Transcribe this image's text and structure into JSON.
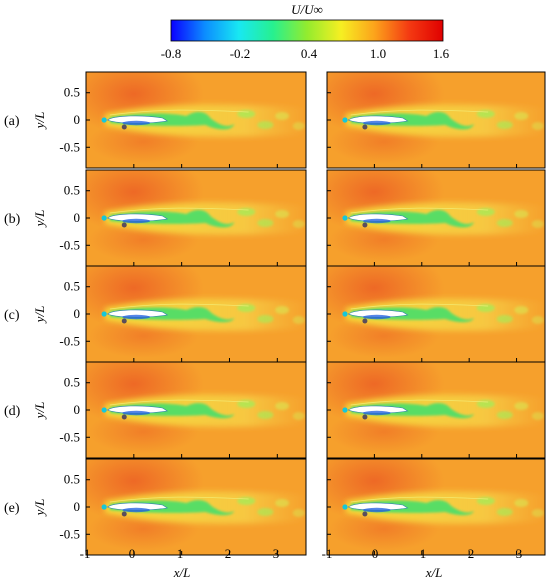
{
  "colorbar": {
    "title": "U/U∞",
    "tick_labels": [
      "-0.8",
      "-0.2",
      "0.4",
      "1.0",
      "1.6"
    ],
    "stops": [
      "#0a00ff",
      "#0c8dff",
      "#18e8f2",
      "#27f08f",
      "#93ec2e",
      "#f6ef22",
      "#fca21b",
      "#f43a12",
      "#e00000"
    ]
  },
  "rows": [
    {
      "label": "(a)"
    },
    {
      "label": "(b)"
    },
    {
      "label": "(c)"
    },
    {
      "label": "(d)"
    },
    {
      "label": "(e)"
    }
  ],
  "y_axis": {
    "label": "y/L",
    "tick_labels": [
      "0.5",
      "0",
      "-0.5"
    ]
  },
  "x_axis": {
    "label": "x/L",
    "tick_labels": [
      "-1",
      "0",
      "1",
      "2",
      "3"
    ]
  },
  "colors": {
    "freestream": "#f6a02c",
    "high_speed": "#ee6a24",
    "wake_band": "#f5df3a",
    "wake_core": "#47df6b",
    "wake_core_light": "#a8eb57",
    "body_tip": "#15c7d9"
  }
}
